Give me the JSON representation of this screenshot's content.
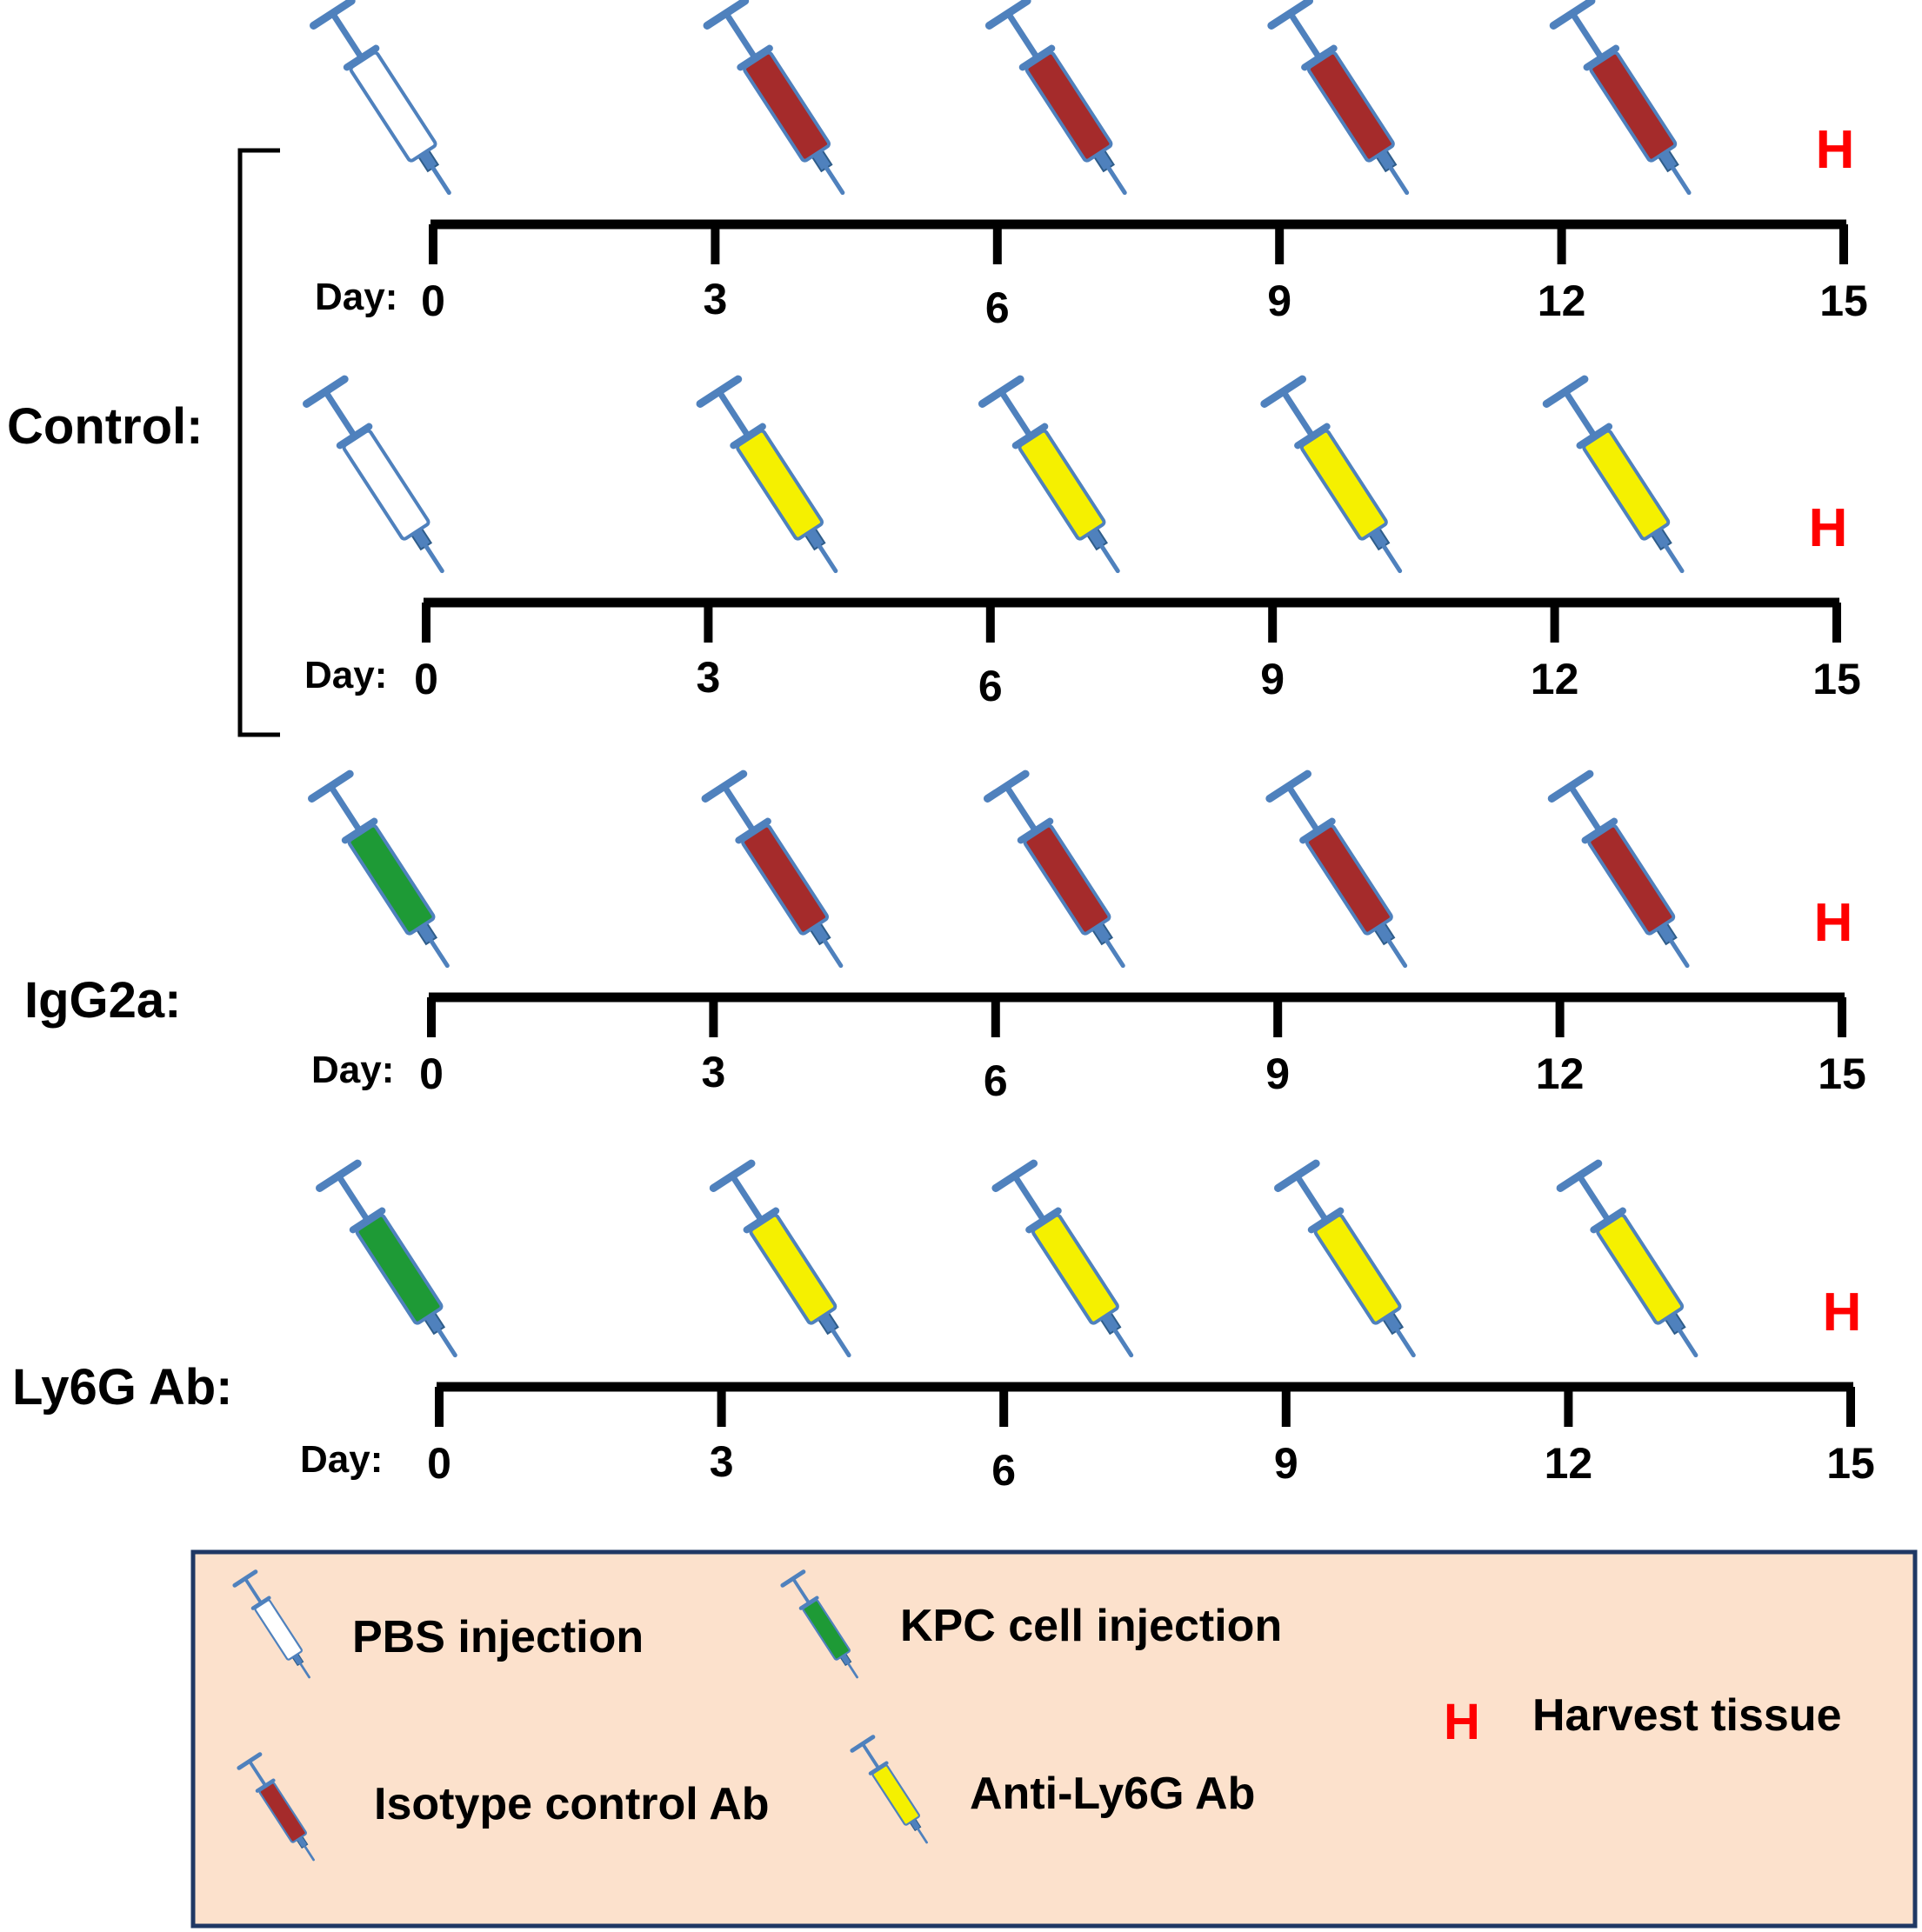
{
  "colors": {
    "pbs": "#ffffff",
    "kpc": "#1e9a36",
    "isotype": "#a52b2b",
    "anti_ly6g": "#f5f000",
    "syringe_steel": "#4f81bd",
    "harvest": "#ff0000",
    "legend_bg": "#fce1cc",
    "legend_border": "#1f3864"
  },
  "groups": [
    {
      "label": "Control:"
    },
    {
      "label": "IgG2a:"
    },
    {
      "label": "Ly6G Ab:"
    }
  ],
  "timelines": [
    {
      "day_label": "Day:",
      "ticks": [
        "0",
        "3",
        "6",
        "9",
        "12",
        "15"
      ],
      "harvest_label": "H",
      "injections": [
        {
          "day": 0,
          "type": "pbs"
        },
        {
          "day": 4,
          "type": "isotype"
        },
        {
          "day": 7,
          "type": "isotype"
        },
        {
          "day": 10,
          "type": "isotype"
        },
        {
          "day": 13,
          "type": "isotype"
        }
      ]
    },
    {
      "day_label": "Day:",
      "ticks": [
        "0",
        "3",
        "6",
        "9",
        "12",
        "15"
      ],
      "harvest_label": "H",
      "injections": [
        {
          "day": 0,
          "type": "pbs"
        },
        {
          "day": 4,
          "type": "anti_ly6g"
        },
        {
          "day": 7,
          "type": "anti_ly6g"
        },
        {
          "day": 10,
          "type": "anti_ly6g"
        },
        {
          "day": 13,
          "type": "anti_ly6g"
        }
      ]
    },
    {
      "day_label": "Day:",
      "ticks": [
        "0",
        "3",
        "6",
        "9",
        "12",
        "15"
      ],
      "harvest_label": "H",
      "injections": [
        {
          "day": 0,
          "type": "kpc"
        },
        {
          "day": 4,
          "type": "isotype"
        },
        {
          "day": 7,
          "type": "isotype"
        },
        {
          "day": 10,
          "type": "isotype"
        },
        {
          "day": 13,
          "type": "isotype"
        }
      ]
    },
    {
      "day_label": "Day:",
      "ticks": [
        "0",
        "3",
        "6",
        "9",
        "12",
        "15"
      ],
      "harvest_label": "H",
      "injections": [
        {
          "day": 0,
          "type": "kpc"
        },
        {
          "day": 4,
          "type": "anti_ly6g"
        },
        {
          "day": 7,
          "type": "anti_ly6g"
        },
        {
          "day": 10,
          "type": "anti_ly6g"
        },
        {
          "day": 13,
          "type": "anti_ly6g"
        }
      ]
    }
  ],
  "legend": {
    "items": [
      {
        "type": "pbs",
        "label": "PBS injection"
      },
      {
        "type": "kpc",
        "label": "KPC cell injection"
      },
      {
        "type": "isotype",
        "label": "Isotype control Ab"
      },
      {
        "type": "anti_ly6g",
        "label": "Anti-Ly6G Ab"
      }
    ],
    "harvest_symbol": "H",
    "harvest_label": "Harvest tissue"
  }
}
